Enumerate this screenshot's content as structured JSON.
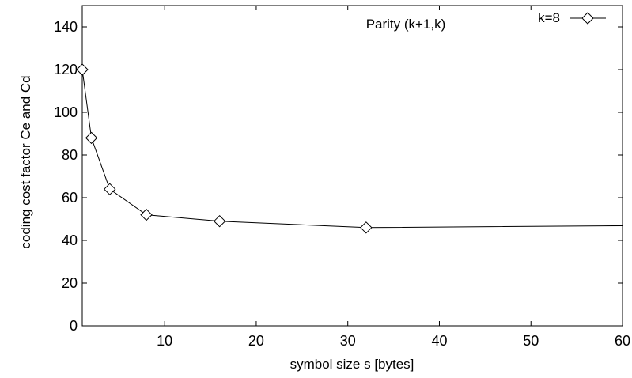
{
  "chart_data": {
    "type": "line",
    "title": "Parity (k+1,k)",
    "xlabel": "symbol size s [bytes]",
    "ylabel": "coding cost factor Ce and Cd",
    "xlim": [
      1,
      60
    ],
    "ylim": [
      0,
      150
    ],
    "x_ticks": [
      10,
      20,
      30,
      40,
      50,
      60
    ],
    "y_ticks": [
      0,
      20,
      40,
      60,
      80,
      100,
      120,
      140
    ],
    "grid": false,
    "legend_position": "top-right",
    "series": [
      {
        "name": "k=8",
        "marker": "diamond",
        "x": [
          1,
          2,
          4,
          8,
          16,
          32,
          64
        ],
        "y": [
          120,
          88,
          64,
          52,
          49,
          46,
          47
        ]
      }
    ]
  }
}
